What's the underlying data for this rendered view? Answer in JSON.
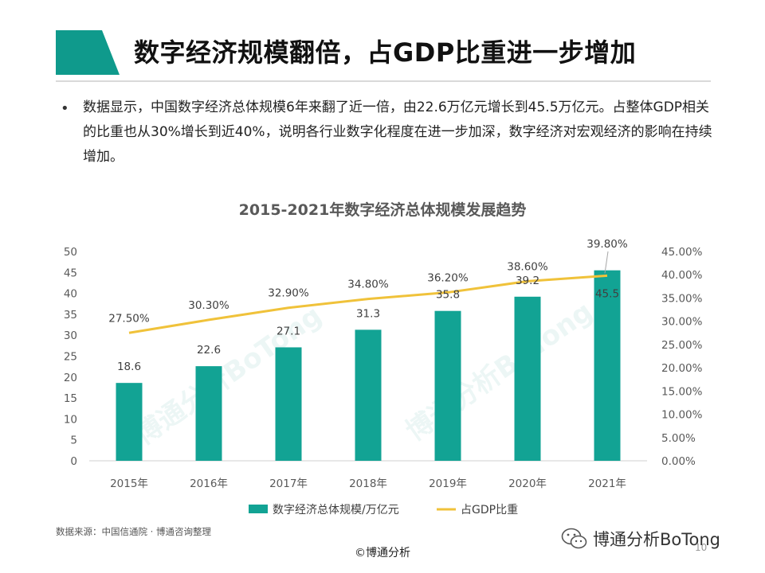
{
  "header": {
    "title": "数字经济规模翻倍，占GDP比重进一步增加",
    "accent_color": "#0f9a8c"
  },
  "body": {
    "bullet": "•",
    "text": "数据显示，中国数字经济总体规模6年来翻了近一倍，由22.6万亿元增长到45.5万亿元。占整体GDP相关的比重也从30%增长到近40%，说明各行业数字化程度在进一步加深，数字经济对宏观经济的影响在持续增加。"
  },
  "chart_data": {
    "type": "bar",
    "title": "2015-2021年数字经济总体规模发展趋势",
    "categories": [
      "2015年",
      "2016年",
      "2017年",
      "2018年",
      "2019年",
      "2020年",
      "2021年"
    ],
    "series": [
      {
        "name": "数字经济总体规模/万亿元",
        "type": "bar",
        "axis": "left",
        "color": "#12a394",
        "values": [
          18.6,
          22.6,
          27.1,
          31.3,
          35.8,
          39.2,
          45.5
        ],
        "labels": [
          "18.6",
          "22.6",
          "27.1",
          "31.3",
          "35.8",
          "39.2",
          "45.5"
        ]
      },
      {
        "name": "占GDP比重",
        "type": "line",
        "axis": "right",
        "color": "#f0c23a",
        "values": [
          27.5,
          30.3,
          32.9,
          34.8,
          36.2,
          38.6,
          39.8
        ],
        "labels": [
          "27.50%",
          "30.30%",
          "32.90%",
          "34.80%",
          "36.20%",
          "38.60%",
          "39.80%"
        ]
      }
    ],
    "y_left": {
      "min": 0,
      "max": 50,
      "step": 5,
      "ticks": [
        "0",
        "5",
        "10",
        "15",
        "20",
        "25",
        "30",
        "35",
        "40",
        "45",
        "50"
      ]
    },
    "y_right": {
      "min": 0,
      "max": 45,
      "step": 5,
      "ticks": [
        "0.00%",
        "5.00%",
        "10.00%",
        "15.00%",
        "20.00%",
        "25.00%",
        "30.00%",
        "35.00%",
        "40.00%",
        "45.00%"
      ]
    },
    "legend_position": "bottom",
    "grid": false
  },
  "watermarks": [
    "博通分析BoTong",
    "博通分析BoTong"
  ],
  "footer": {
    "source": "数据来源：中国信通院 · 博通咨询整理",
    "credit": "©博通分析",
    "brand": "博通分析BoTong",
    "page_number": "10"
  }
}
